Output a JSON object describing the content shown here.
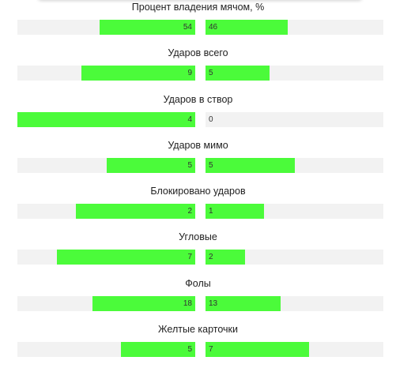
{
  "accent_color": "#4bfb3a",
  "stats": [
    {
      "label": "Процент владения мячом, %",
      "home": "54",
      "away": "46",
      "home_share": 0.54,
      "away_share": 0.46
    },
    {
      "label": "Ударов всего",
      "home": "9",
      "away": "5",
      "home_share": 0.64,
      "away_share": 0.36
    },
    {
      "label": "Ударов в створ",
      "home": "4",
      "away": "0",
      "home_share": 1.0,
      "away_share": 0.0
    },
    {
      "label": "Ударов мимо",
      "home": "5",
      "away": "5",
      "home_share": 0.5,
      "away_share": 0.5
    },
    {
      "label": "Блокировано ударов",
      "home": "2",
      "away": "1",
      "home_share": 0.67,
      "away_share": 0.33
    },
    {
      "label": "Угловые",
      "home": "7",
      "away": "2",
      "home_share": 0.78,
      "away_share": 0.22
    },
    {
      "label": "Фолы",
      "home": "18",
      "away": "13",
      "home_share": 0.58,
      "away_share": 0.42
    },
    {
      "label": "Желтые карточки",
      "home": "5",
      "away": "7",
      "home_share": 0.42,
      "away_share": 0.58
    }
  ]
}
